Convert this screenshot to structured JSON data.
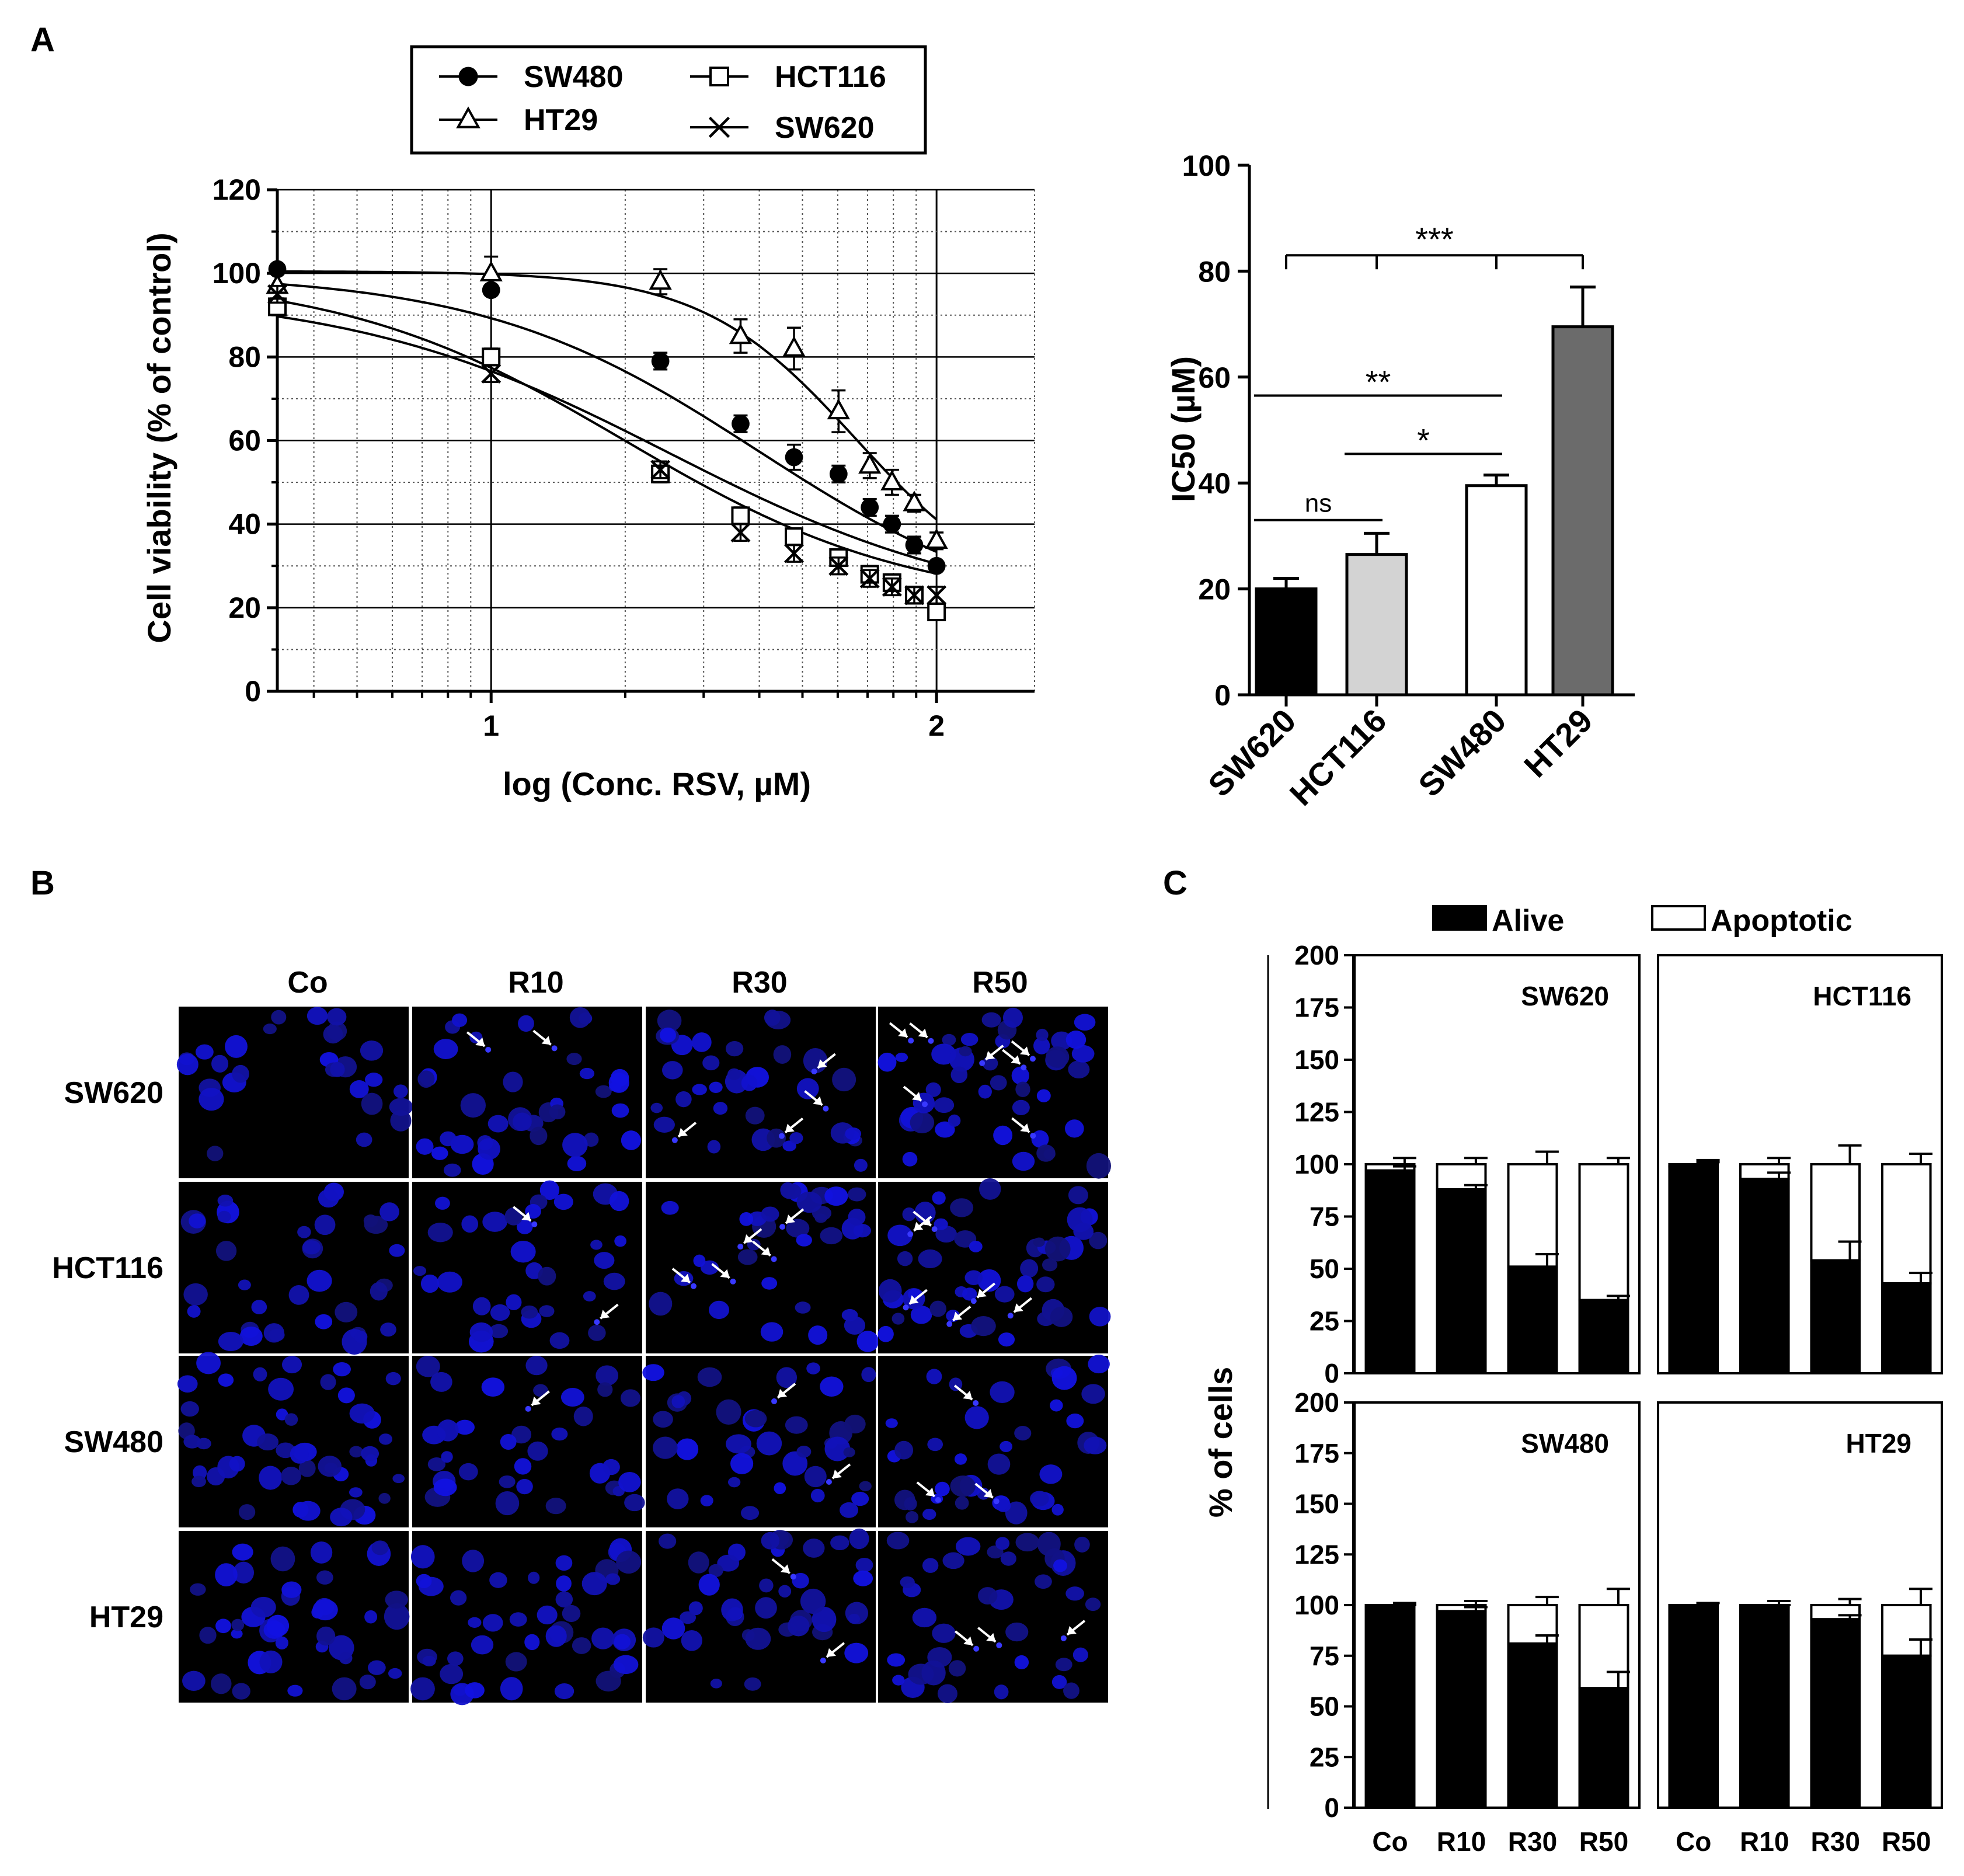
{
  "panel_labels": {
    "a": "A",
    "b": "B",
    "c": "C"
  },
  "chart_data": [
    {
      "id": "dose_response",
      "type": "line",
      "title": "",
      "xlabel": "log (Conc. RSV, µM)",
      "ylabel": "Cell viability (% of control)",
      "xlim": [
        0.52,
        2.22
      ],
      "ylim": [
        0,
        120
      ],
      "x_ticks": [
        1,
        2
      ],
      "x_tick_labels": [
        "1",
        "2"
      ],
      "y_ticks": [
        0,
        20,
        40,
        60,
        80,
        100,
        120
      ],
      "y_tick_labels": [
        "0",
        "20",
        "40",
        "60",
        "80",
        "100",
        "120"
      ],
      "grid": true,
      "legend_position": "top",
      "x": [
        0.52,
        1.0,
        1.38,
        1.56,
        1.68,
        1.78,
        1.85,
        1.9,
        1.95,
        2.0
      ],
      "series": [
        {
          "name": "SW480",
          "marker": "circle-filled",
          "values": [
            101,
            96,
            79,
            64,
            56,
            52,
            44,
            40,
            35,
            30
          ],
          "errors": [
            1,
            1,
            2,
            2,
            3,
            2,
            2,
            2,
            2,
            1
          ],
          "fit": {
            "top": 100,
            "bottom": 15,
            "logIC50": 1.6,
            "hill": 1.4
          }
        },
        {
          "name": "HT29",
          "marker": "triangle-open",
          "values": [
            97,
            100,
            98,
            85,
            82,
            67,
            54,
            50,
            45,
            36
          ],
          "errors": [
            3,
            4,
            3,
            4,
            5,
            5,
            3,
            3,
            2,
            2
          ],
          "fit": {
            "top": 100.5,
            "bottom": 20,
            "logIC50": 1.82,
            "hill": 2.5
          }
        },
        {
          "name": "HCT116",
          "marker": "square-open",
          "values": [
            92,
            80,
            52,
            42,
            37,
            32,
            28,
            26,
            23,
            19
          ],
          "errors": [
            2,
            2,
            2,
            2,
            2,
            2,
            2,
            2,
            2,
            2
          ],
          "fit": {
            "top": 96,
            "bottom": 18,
            "logIC50": 1.4,
            "hill": 1.2
          }
        },
        {
          "name": "SW620",
          "marker": "x",
          "values": [
            95,
            76,
            53,
            38,
            33,
            30,
            27,
            25,
            23,
            23
          ],
          "errors": [
            2,
            2,
            2,
            2,
            2,
            2,
            2,
            2,
            2,
            2
          ],
          "fit": {
            "top": 100,
            "bottom": 20,
            "logIC50": 1.3,
            "hill": 1.35
          }
        }
      ]
    },
    {
      "id": "ic50",
      "type": "bar",
      "title": "",
      "xlabel": "",
      "ylabel": "IC50 (µM)",
      "ylim": [
        0,
        100
      ],
      "y_ticks": [
        0,
        20,
        40,
        60,
        80,
        100
      ],
      "y_tick_labels": [
        "0",
        "20",
        "40",
        "60",
        "80",
        "100"
      ],
      "categories": [
        "SW620",
        "HCT116",
        "SW480",
        "HT29"
      ],
      "values": [
        20,
        26.5,
        39.5,
        69.5
      ],
      "errors": [
        2,
        4,
        2,
        7.5
      ],
      "colors": [
        "#000000",
        "#d3d3d3",
        "#ffffff",
        "#6b6b6b"
      ],
      "significance": [
        {
          "label": "ns",
          "from": 0,
          "to": 1,
          "y": 33
        },
        {
          "label": "*",
          "from": 1,
          "to": 2,
          "y": 45.5
        },
        {
          "label": "**",
          "from": 0,
          "to": 2,
          "y": 56.5
        },
        {
          "label": "***",
          "from": 0,
          "to": 3,
          "y": 83,
          "ticks": [
            0,
            1,
            2,
            3
          ]
        }
      ]
    },
    {
      "id": "apoptosis",
      "type": "bar",
      "stacked": true,
      "ylabel": "% of cells",
      "ylim": [
        0,
        200
      ],
      "y_ticks": [
        0,
        25,
        50,
        75,
        100,
        125,
        150,
        175,
        200
      ],
      "y_tick_labels": [
        "0",
        "25",
        "50",
        "75",
        "100",
        "125",
        "150",
        "175",
        "200"
      ],
      "categories": [
        "Co",
        "R10",
        "R30",
        "R50"
      ],
      "legend": [
        "Alive",
        "Apoptotic"
      ],
      "legend_colors": [
        "#000000",
        "#ffffff"
      ],
      "legend_position": "top",
      "panels": [
        {
          "name": "SW620",
          "alive": [
            97,
            88,
            51,
            35
          ],
          "alive_err": [
            2,
            2,
            6,
            2
          ],
          "total": [
            100,
            100,
            100,
            100
          ],
          "total_err": [
            3,
            3,
            6,
            3
          ]
        },
        {
          "name": "HCT116",
          "alive": [
            99,
            93,
            54,
            43
          ],
          "alive_err": [
            2,
            3,
            9,
            5
          ],
          "total": [
            100,
            100,
            100,
            100
          ],
          "total_err": [
            2,
            3,
            9,
            5
          ]
        },
        {
          "name": "SW480",
          "alive": [
            99,
            97,
            81,
            59
          ],
          "alive_err": [
            1,
            2,
            4,
            8
          ],
          "total": [
            100,
            100,
            100,
            100
          ],
          "total_err": [
            1,
            2,
            4,
            8
          ]
        },
        {
          "name": "HT29",
          "alive": [
            100,
            99,
            93,
            75
          ],
          "alive_err": [
            1,
            1,
            2,
            8
          ],
          "total": [
            100,
            100,
            100,
            100
          ],
          "total_err": [
            1,
            2,
            3,
            8
          ]
        }
      ]
    }
  ],
  "micrographs": {
    "columns": [
      "Co",
      "R10",
      "R30",
      "R50"
    ],
    "rows": [
      "SW620",
      "HCT116",
      "SW480",
      "HT29"
    ],
    "arrow_counts": [
      [
        0,
        2,
        4,
        7
      ],
      [
        0,
        2,
        5,
        6
      ],
      [
        0,
        1,
        2,
        3
      ],
      [
        0,
        0,
        2,
        3
      ]
    ],
    "nucleus_color": "#1a1aee",
    "background_color": "#000000"
  }
}
